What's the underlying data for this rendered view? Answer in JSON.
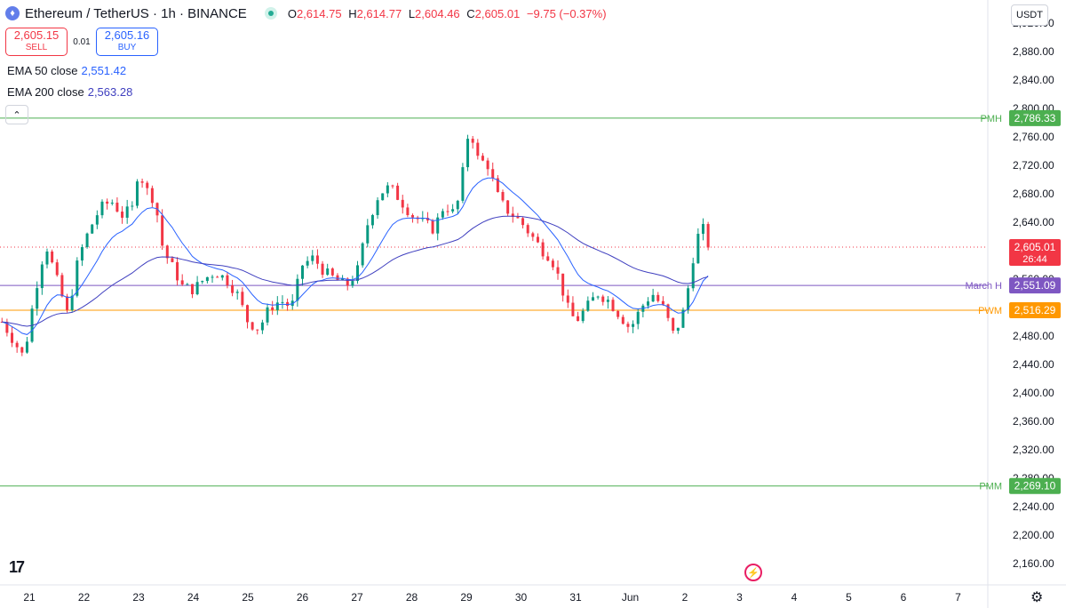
{
  "header": {
    "symbol": "Ethereum / TetherUS · 1h · BINANCE",
    "ohlc": [
      {
        "label": "O",
        "value": "2,614.75"
      },
      {
        "label": "H",
        "value": "2,614.77"
      },
      {
        "label": "L",
        "value": "2,604.46"
      },
      {
        "label": "C",
        "value": "2,605.01"
      }
    ],
    "change": "−9.75 (−0.37%)"
  },
  "trade": {
    "sell_price": "2,605.15",
    "sell_label": "SELL",
    "spread": "0.01",
    "buy_price": "2,605.16",
    "buy_label": "BUY"
  },
  "indicators": [
    {
      "name": "EMA 50 close",
      "value": "2,551.42",
      "color": "#2962ff"
    },
    {
      "name": "EMA 200 close",
      "value": "2,563.28",
      "color": "#3f3fbf"
    }
  ],
  "currency": "USDT",
  "icons": {
    "coin": "ethereum-icon",
    "status": "market-open-icon",
    "collapse": "chevron-up-icon",
    "logo": "tradingview-logo",
    "bolt": "lightning-icon",
    "settings": "gear-icon"
  },
  "chart_data": {
    "type": "candlestick",
    "y_ticks": [
      "2,160.00",
      "2,200.00",
      "2,240.00",
      "2,280.00",
      "2,320.00",
      "2,360.00",
      "2,400.00",
      "2,440.00",
      "2,480.00",
      "2,520.00",
      "2,560.00",
      "2,600.00",
      "2,640.00",
      "2,680.00",
      "2,720.00",
      "2,760.00",
      "2,800.00",
      "2,840.00",
      "2,880.00",
      "2,920.00"
    ],
    "x_ticks": [
      "21",
      "22",
      "23",
      "24",
      "25",
      "26",
      "27",
      "28",
      "29",
      "30",
      "31",
      "Jun",
      "2",
      "3",
      "4",
      "5",
      "6",
      "7"
    ],
    "ylim": [
      2130,
      2950
    ],
    "levels": [
      {
        "label": "PMH",
        "value": 2786.33,
        "value_text": "2,786.33",
        "color": "#4caf50"
      },
      {
        "label": "March H",
        "value": 2551.09,
        "value_text": "2,551.09",
        "color": "#7e57c2"
      },
      {
        "label": "PWM",
        "value": 2516.29,
        "value_text": "2,516.29",
        "color": "#ff9800"
      },
      {
        "label": "PMM",
        "value": 2269.1,
        "value_text": "2,269.10",
        "color": "#4caf50"
      }
    ],
    "last_price": {
      "value": 2605.01,
      "value_text": "2,605.01",
      "countdown": "26:44",
      "color": "#f23645"
    },
    "price_path": [
      [
        20.5,
        2500
      ],
      [
        20.7,
        2475
      ],
      [
        20.9,
        2450
      ],
      [
        21.1,
        2540
      ],
      [
        21.3,
        2610
      ],
      [
        21.5,
        2560
      ],
      [
        21.7,
        2510
      ],
      [
        21.9,
        2590
      ],
      [
        22.1,
        2630
      ],
      [
        22.3,
        2660
      ],
      [
        22.5,
        2670
      ],
      [
        22.7,
        2650
      ],
      [
        22.9,
        2660
      ],
      [
        23.0,
        2720
      ],
      [
        23.1,
        2690
      ],
      [
        23.3,
        2670
      ],
      [
        23.45,
        2600
      ],
      [
        23.6,
        2580
      ],
      [
        23.8,
        2550
      ],
      [
        24.0,
        2545
      ],
      [
        24.2,
        2560
      ],
      [
        24.4,
        2570
      ],
      [
        24.6,
        2560
      ],
      [
        24.8,
        2540
      ],
      [
        25.0,
        2500
      ],
      [
        25.2,
        2490
      ],
      [
        25.4,
        2520
      ],
      [
        25.6,
        2530
      ],
      [
        25.8,
        2520
      ],
      [
        26.0,
        2580
      ],
      [
        26.2,
        2590
      ],
      [
        26.4,
        2570
      ],
      [
        26.6,
        2560
      ],
      [
        26.8,
        2550
      ],
      [
        27.0,
        2570
      ],
      [
        27.2,
        2640
      ],
      [
        27.4,
        2680
      ],
      [
        27.6,
        2690
      ],
      [
        27.8,
        2670
      ],
      [
        28.0,
        2650
      ],
      [
        28.2,
        2640
      ],
      [
        28.4,
        2630
      ],
      [
        28.6,
        2665
      ],
      [
        28.8,
        2650
      ],
      [
        29.0,
        2740
      ],
      [
        29.05,
        2780
      ],
      [
        29.2,
        2730
      ],
      [
        29.4,
        2720
      ],
      [
        29.55,
        2680
      ],
      [
        29.7,
        2660
      ],
      [
        29.85,
        2650
      ],
      [
        30.0,
        2640
      ],
      [
        30.2,
        2620
      ],
      [
        30.4,
        2600
      ],
      [
        30.55,
        2590
      ],
      [
        30.7,
        2560
      ],
      [
        30.85,
        2520
      ],
      [
        31.0,
        2500
      ],
      [
        31.2,
        2520
      ],
      [
        31.4,
        2540
      ],
      [
        31.6,
        2530
      ],
      [
        31.8,
        2510
      ],
      [
        32.0,
        2490
      ],
      [
        32.2,
        2520
      ],
      [
        32.4,
        2540
      ],
      [
        32.6,
        2520
      ],
      [
        32.8,
        2480
      ],
      [
        33.0,
        2520
      ],
      [
        33.15,
        2590
      ],
      [
        33.3,
        2640
      ],
      [
        33.4,
        2610
      ],
      [
        33.5,
        2605
      ]
    ]
  }
}
